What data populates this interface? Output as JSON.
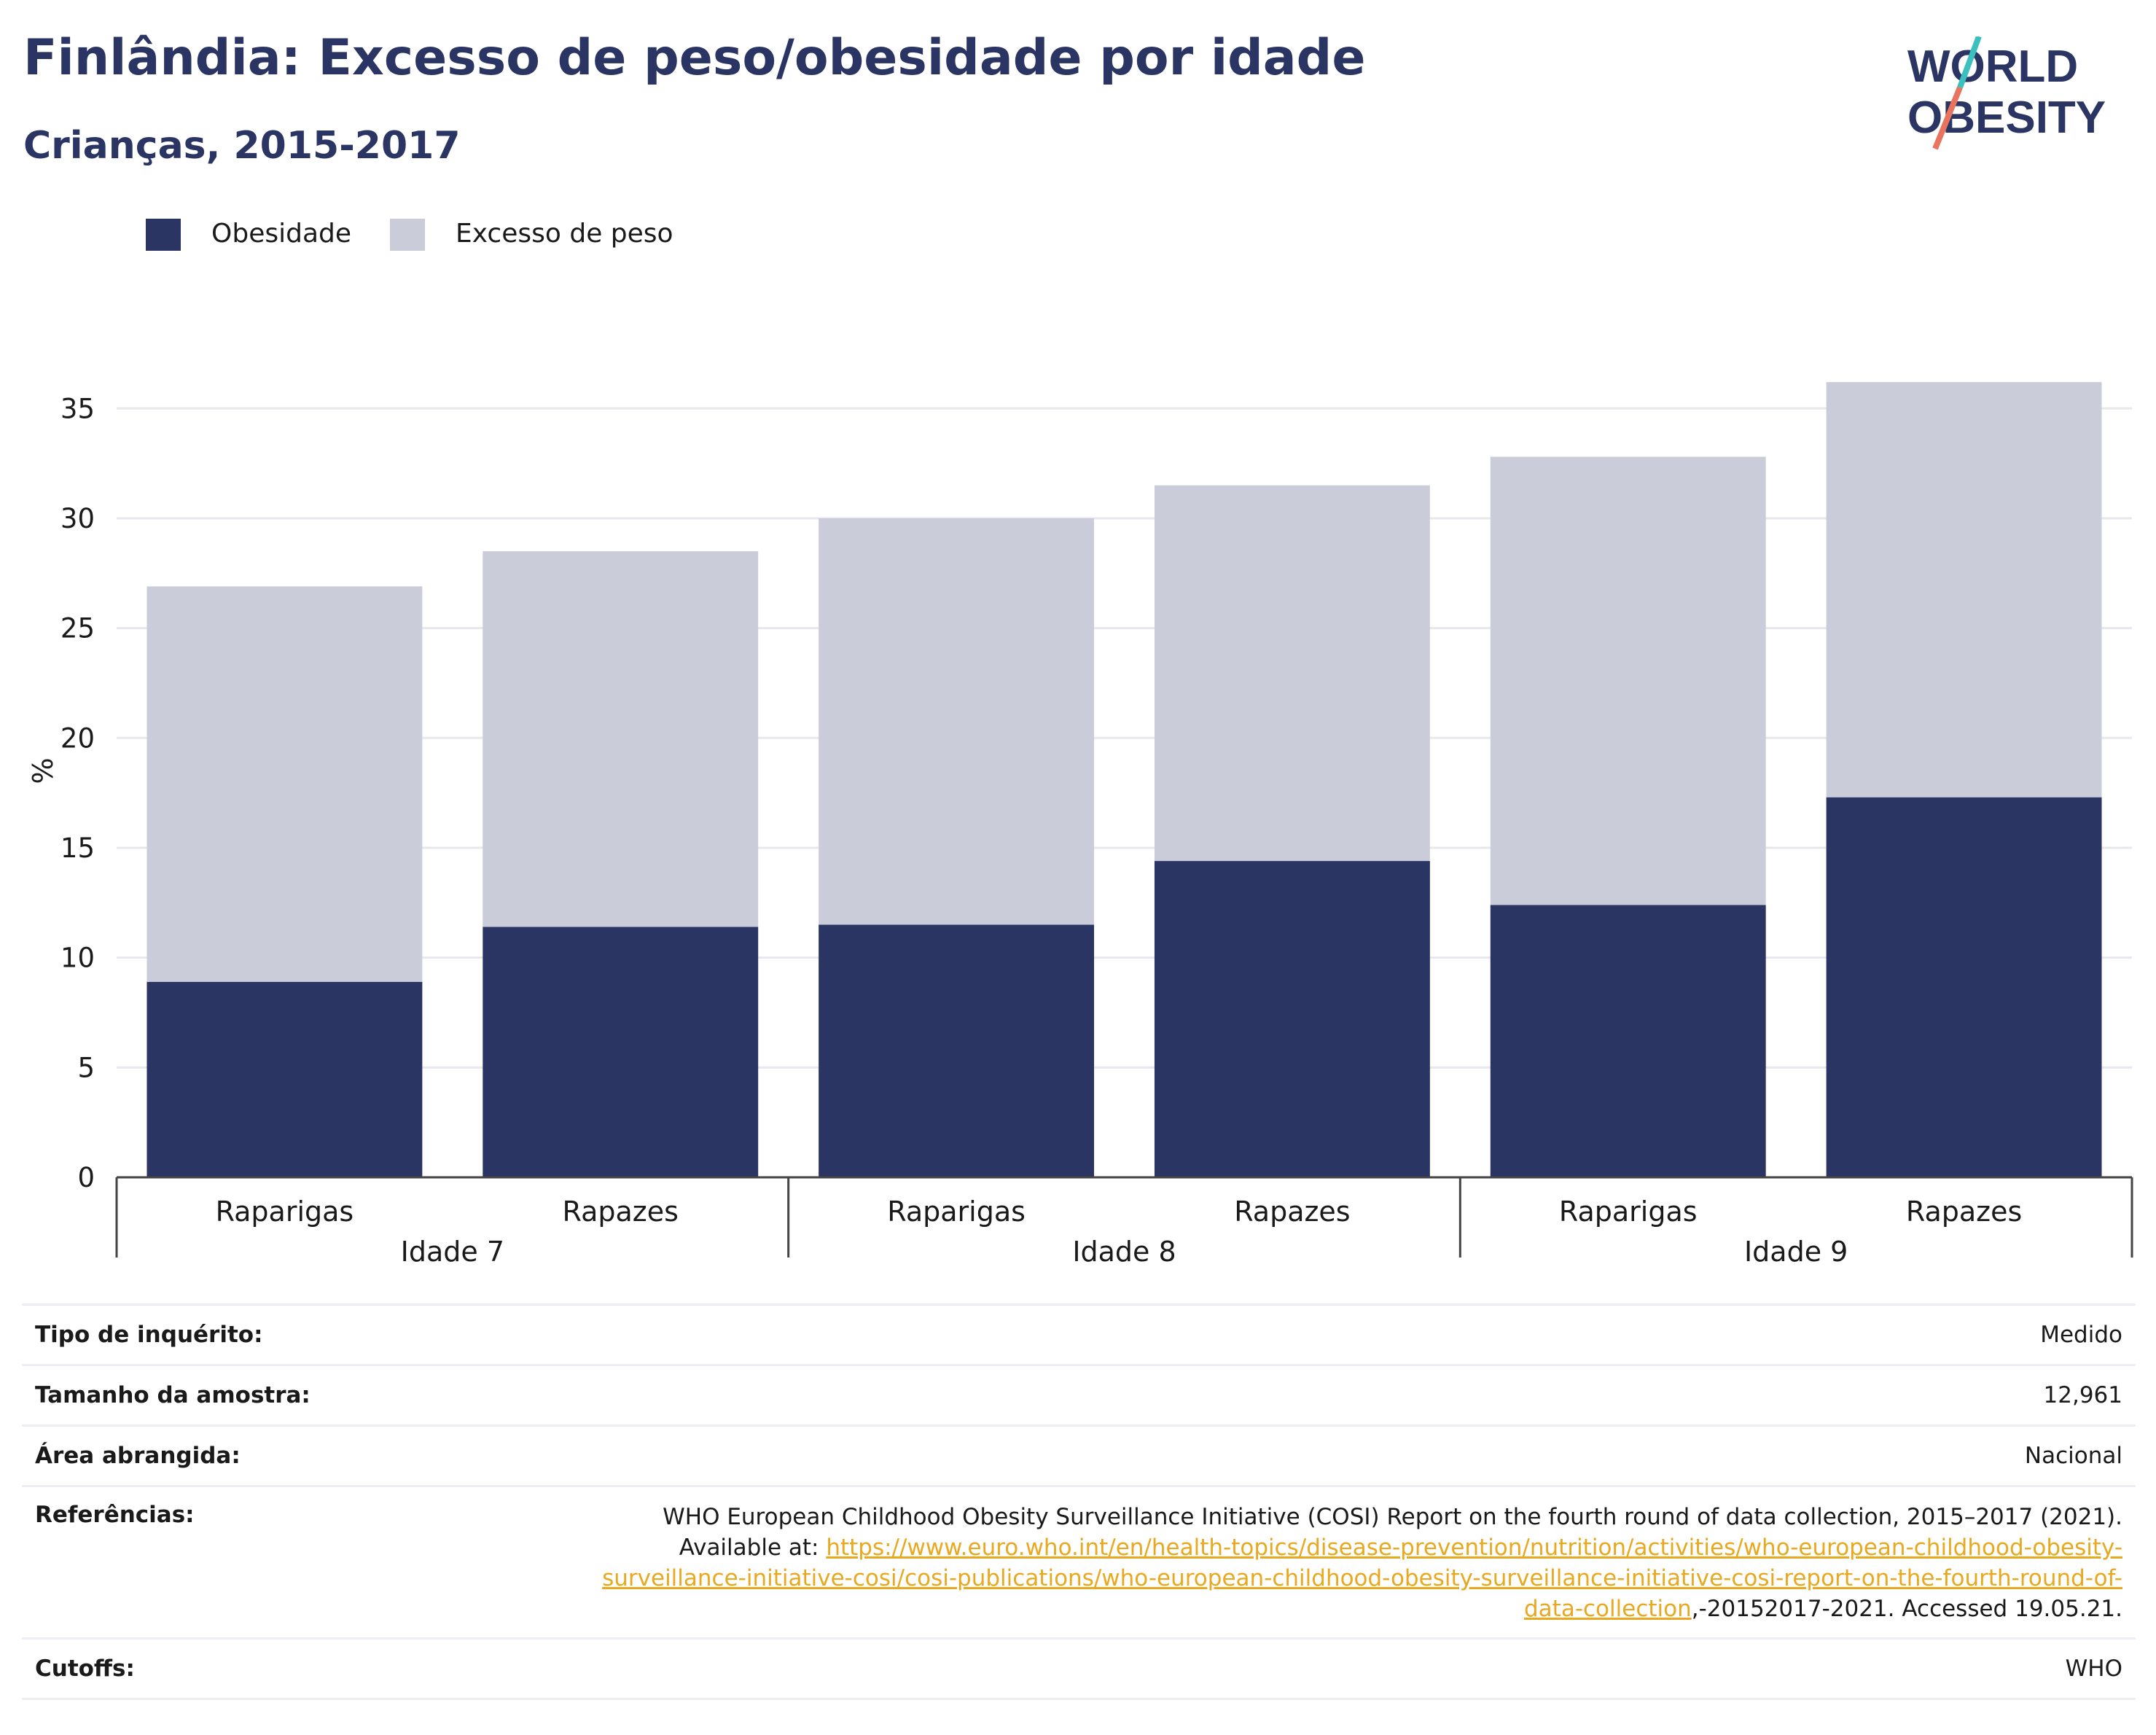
{
  "header": {
    "title": "Finlândia: Excesso de peso/obesidade por idade",
    "subtitle": "Crianças, 2015-2017"
  },
  "logo": {
    "line1": "WORLD",
    "line2": "OBESITY",
    "colors": {
      "text": "#2a3563",
      "slash_teal": "#3bbfbf",
      "slash_coral": "#e8735f"
    }
  },
  "legend": [
    {
      "label": "Obesidade",
      "color": "#2a3563"
    },
    {
      "label": "Excesso de peso",
      "color": "#cacdd9"
    }
  ],
  "chart_data": {
    "type": "bar",
    "stacked": true,
    "ylabel": "%",
    "ylim": [
      0,
      37
    ],
    "yticks": [
      0,
      5,
      10,
      15,
      20,
      25,
      30,
      35
    ],
    "grid": true,
    "legend_position": "top-left",
    "groups": [
      "Idade 7",
      "Idade 8",
      "Idade 9"
    ],
    "categories": [
      "Raparigas",
      "Rapazes",
      "Raparigas",
      "Rapazes",
      "Raparigas",
      "Rapazes"
    ],
    "series": [
      {
        "name": "Obesidade",
        "color": "#2a3563",
        "values": [
          8.9,
          11.4,
          11.5,
          14.4,
          12.4,
          17.3
        ]
      },
      {
        "name": "Excesso de peso",
        "color": "#cacdd9",
        "values": [
          18.0,
          17.1,
          18.5,
          17.1,
          20.4,
          18.9
        ]
      }
    ]
  },
  "info": {
    "survey_type": {
      "label": "Tipo de inquérito:",
      "value": "Medido"
    },
    "sample_size": {
      "label": "Tamanho da amostra:",
      "value": "12,961"
    },
    "area": {
      "label": "Área abrangida:",
      "value": "Nacional"
    },
    "references": {
      "label": "Referências:",
      "text1": "WHO European Childhood Obesity Surveillance Initiative (COSI) Report on the fourth round of data collection, 2015–2017 (2021). Available at: ",
      "link": "https://www.euro.who.int/en/health-topics/disease-prevention/nutrition/activities/who-european-childhood-obesity-surveillance-initiative-cosi/cosi-publications/who-european-childhood-obesity-surveillance-initiative-cosi-report-on-the-fourth-round-of-data-collection",
      "text2": ",-20152017-2021. Accessed 19.05.21."
    },
    "cutoffs": {
      "label": "Cutoffs:",
      "value": "WHO"
    }
  }
}
